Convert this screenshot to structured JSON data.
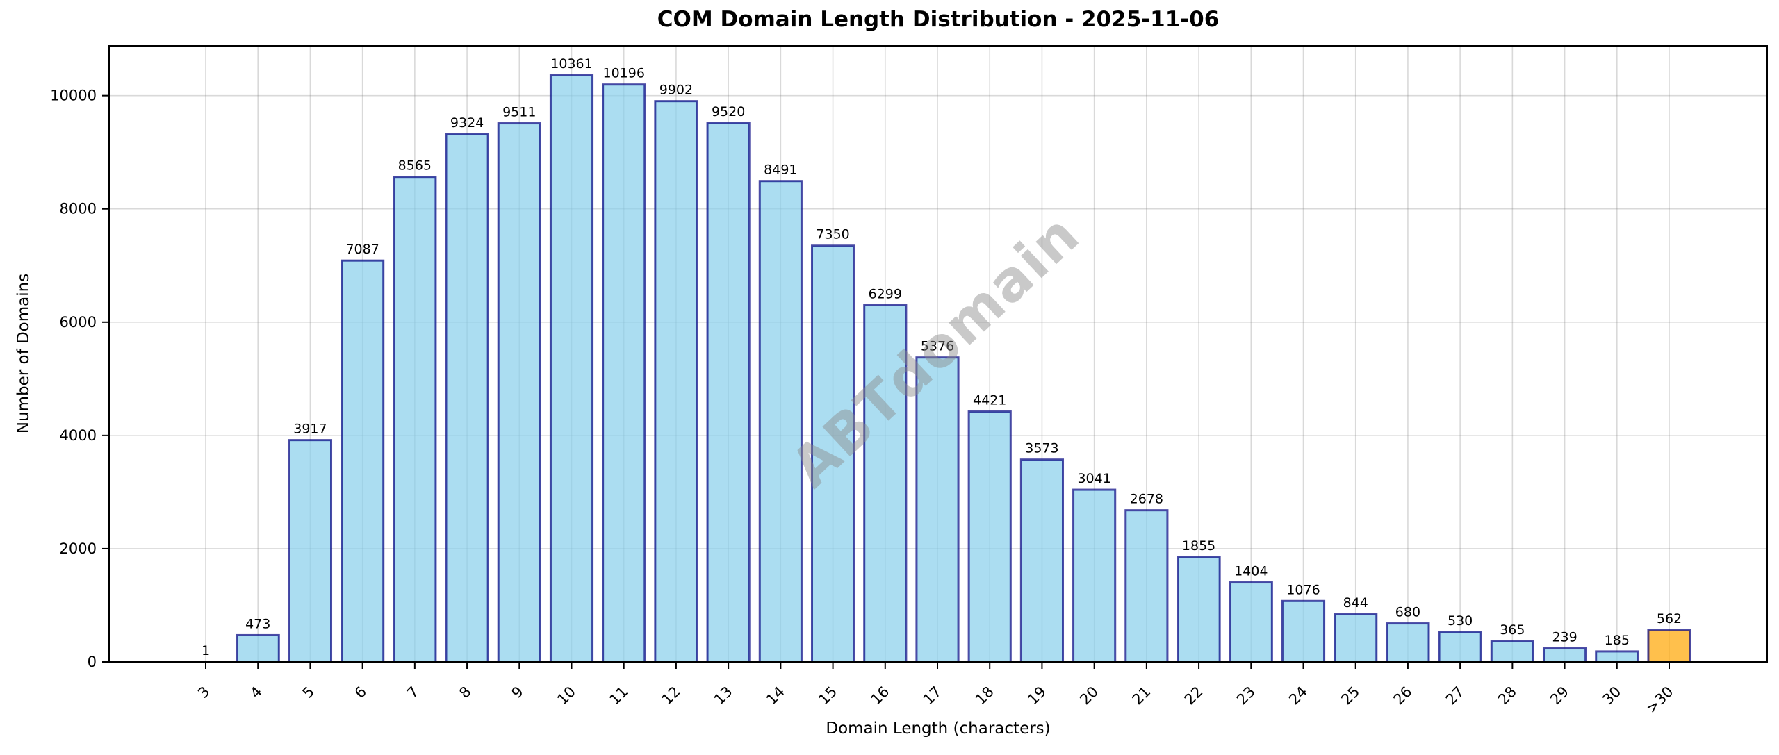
{
  "chart_data": {
    "type": "bar",
    "title": "COM Domain Length Distribution - 2025-11-06",
    "xlabel": "Domain Length (characters)",
    "ylabel": "Number of Domains",
    "watermark": "ABTdomain",
    "categories": [
      "3",
      "4",
      "5",
      "6",
      "7",
      "8",
      "9",
      "10",
      "11",
      "12",
      "13",
      "14",
      "15",
      "16",
      "17",
      "18",
      "19",
      "20",
      "21",
      "22",
      "23",
      "24",
      "25",
      "26",
      "27",
      "28",
      "29",
      "30",
      ">30"
    ],
    "values": [
      1,
      473,
      3917,
      7087,
      8565,
      9324,
      9511,
      10361,
      10196,
      9902,
      9520,
      8491,
      7350,
      6299,
      5376,
      4421,
      3573,
      3041,
      2678,
      1855,
      1404,
      1076,
      844,
      680,
      530,
      365,
      239,
      185,
      562
    ],
    "value_labels": true,
    "bar_color": "#87CEEB",
    "bar_edge_color": "#000080",
    "bar_alpha": 0.7,
    "highlight_index": 28,
    "highlight_color": "#FFA500",
    "yticks": [
      0,
      2000,
      4000,
      6000,
      8000,
      10000
    ],
    "ylim": [
      0,
      10879
    ],
    "grid": true,
    "grid_color": "#808080",
    "legend": "none"
  }
}
